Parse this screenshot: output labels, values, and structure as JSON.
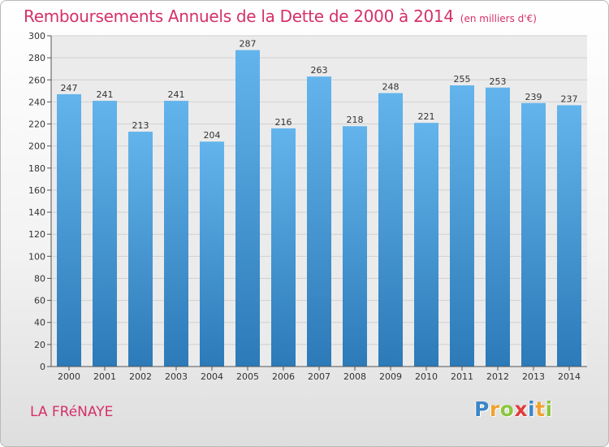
{
  "title": "Remboursements Annuels de la Dette de 2000 à 2014",
  "subtitle": "(en milliers d'€)",
  "place": "LA FRéNAYE",
  "logo": {
    "letters": [
      "P",
      "r",
      "o",
      "x",
      "i",
      "t",
      "i"
    ],
    "colors": [
      "#3a86c8",
      "#f0a230",
      "#8cc63f",
      "#e23c3c",
      "#3a86c8",
      "#f0a230",
      "#8cc63f"
    ]
  },
  "colors": {
    "title": "#d6306a",
    "bar_light": "#63b4ec",
    "bar_dark": "#2c7ab8",
    "grid": "#d0d0d0",
    "axis": "#555555"
  },
  "chart_data": {
    "type": "bar",
    "title": "Remboursements Annuels de la Dette de 2000 à 2014",
    "subtitle": "(en milliers d'€)",
    "categories": [
      "2000",
      "2001",
      "2002",
      "2003",
      "2004",
      "2005",
      "2006",
      "2007",
      "2008",
      "2009",
      "2010",
      "2011",
      "2012",
      "2013",
      "2014"
    ],
    "values": [
      247,
      241,
      213,
      241,
      204,
      287,
      216,
      263,
      218,
      248,
      221,
      255,
      253,
      239,
      237
    ],
    "data_labels": [
      "247",
      "241",
      "213",
      "241",
      "204",
      "287",
      "216",
      "263",
      "218",
      "248",
      "221",
      "255",
      "253",
      "239",
      "237"
    ],
    "ylim": [
      0,
      300
    ],
    "yticks": [
      0,
      20,
      40,
      60,
      80,
      100,
      120,
      140,
      160,
      180,
      200,
      220,
      240,
      260,
      280,
      300
    ],
    "grid": true,
    "legend": "none"
  }
}
